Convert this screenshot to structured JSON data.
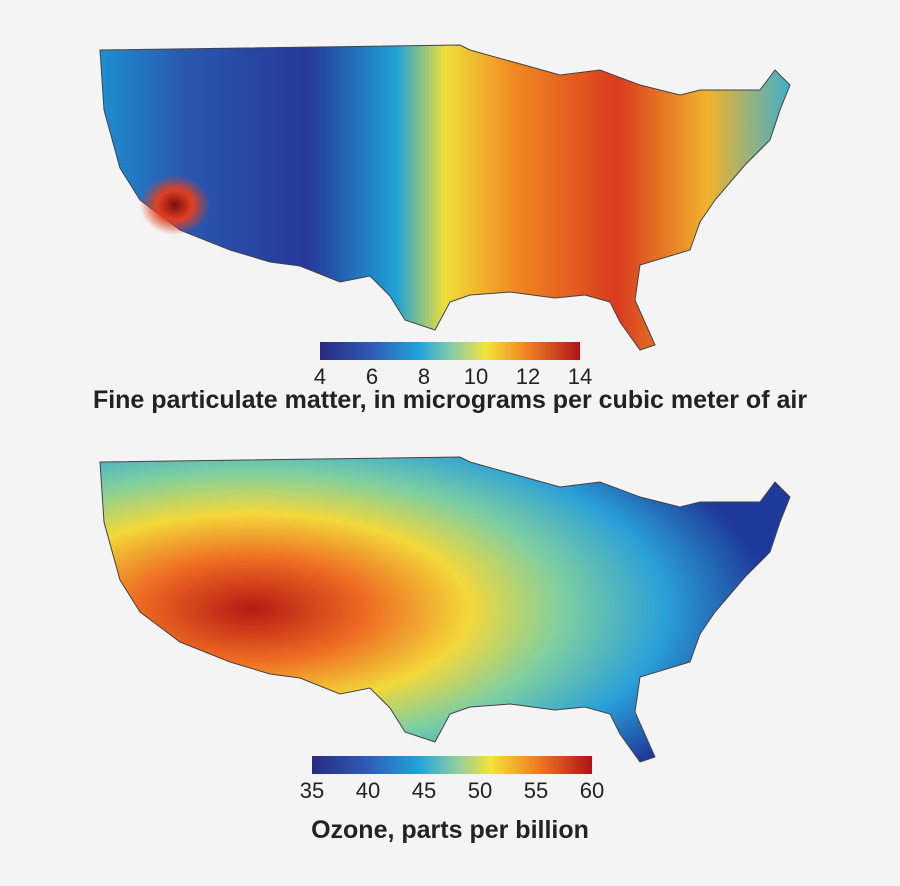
{
  "maps": [
    {
      "title": "Fine particulate matter, in micrograms per cubic meter of air",
      "colorbar": {
        "lim": [
          4,
          14
        ],
        "ticks": [
          4,
          6,
          8,
          10,
          12,
          14
        ]
      }
    },
    {
      "title": "Ozone, parts per billion",
      "colorbar": {
        "lim": [
          35,
          60
        ],
        "ticks": [
          35,
          40,
          45,
          50,
          55,
          60
        ]
      }
    }
  ]
}
